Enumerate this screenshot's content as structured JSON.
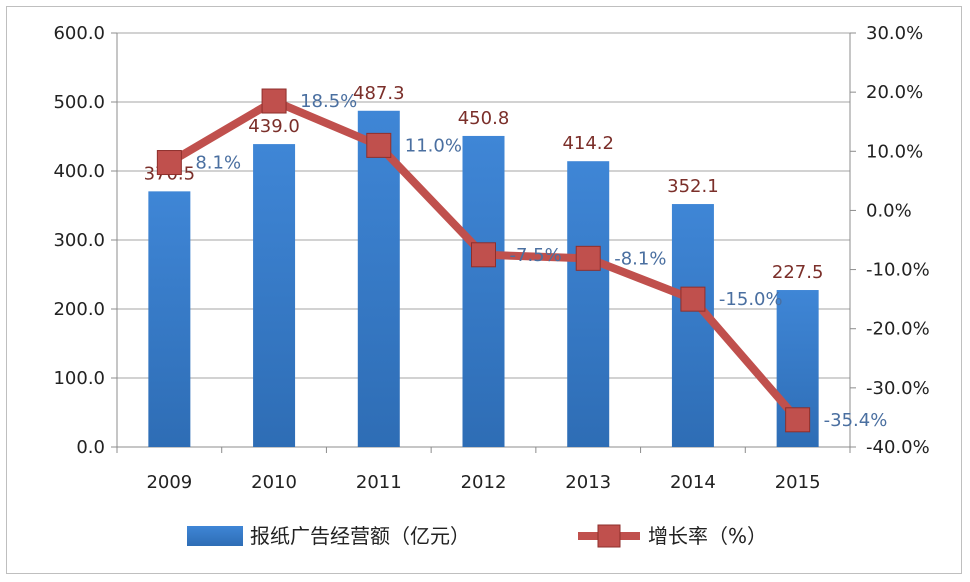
{
  "chart_data": {
    "type": "bar",
    "categories": [
      "2009",
      "2010",
      "2011",
      "2012",
      "2013",
      "2014",
      "2015"
    ],
    "series": [
      {
        "name": "报纸广告经营额（亿元）",
        "type": "bar",
        "axis": "left",
        "values": [
          370.5,
          439.0,
          487.3,
          450.8,
          414.2,
          352.1,
          227.5
        ],
        "labels": [
          "370.5",
          "439.0",
          "487.3",
          "450.8",
          "414.2",
          "352.1",
          "227.5"
        ],
        "color": "#2e6db5"
      },
      {
        "name": "增长率（%）",
        "type": "line",
        "axis": "right",
        "values": [
          8.1,
          18.5,
          11.0,
          -7.5,
          -8.1,
          -15.0,
          -35.4
        ],
        "labels": [
          "8.1%",
          "18.5%",
          "11.0%",
          "-7.5%",
          "-8.1%",
          "-15.0%",
          "-35.4%"
        ],
        "color": "#c0504d"
      }
    ],
    "y_left": {
      "ylim": [
        0,
        600
      ],
      "ticks": [
        0,
        100,
        200,
        300,
        400,
        500,
        600
      ],
      "tick_labels": [
        "0.0",
        "100.0",
        "200.0",
        "300.0",
        "400.0",
        "500.0",
        "600.0"
      ]
    },
    "y_right": {
      "ylim": [
        -40,
        30
      ],
      "ticks": [
        -40,
        -30,
        -20,
        -10,
        0,
        10,
        20,
        30
      ],
      "tick_labels": [
        "-40.0%",
        "-30.0%",
        "-20.0%",
        "-10.0%",
        "0.0%",
        "10.0%",
        "20.0%",
        "30.0%"
      ]
    },
    "grid": true,
    "legend_position": "bottom"
  }
}
